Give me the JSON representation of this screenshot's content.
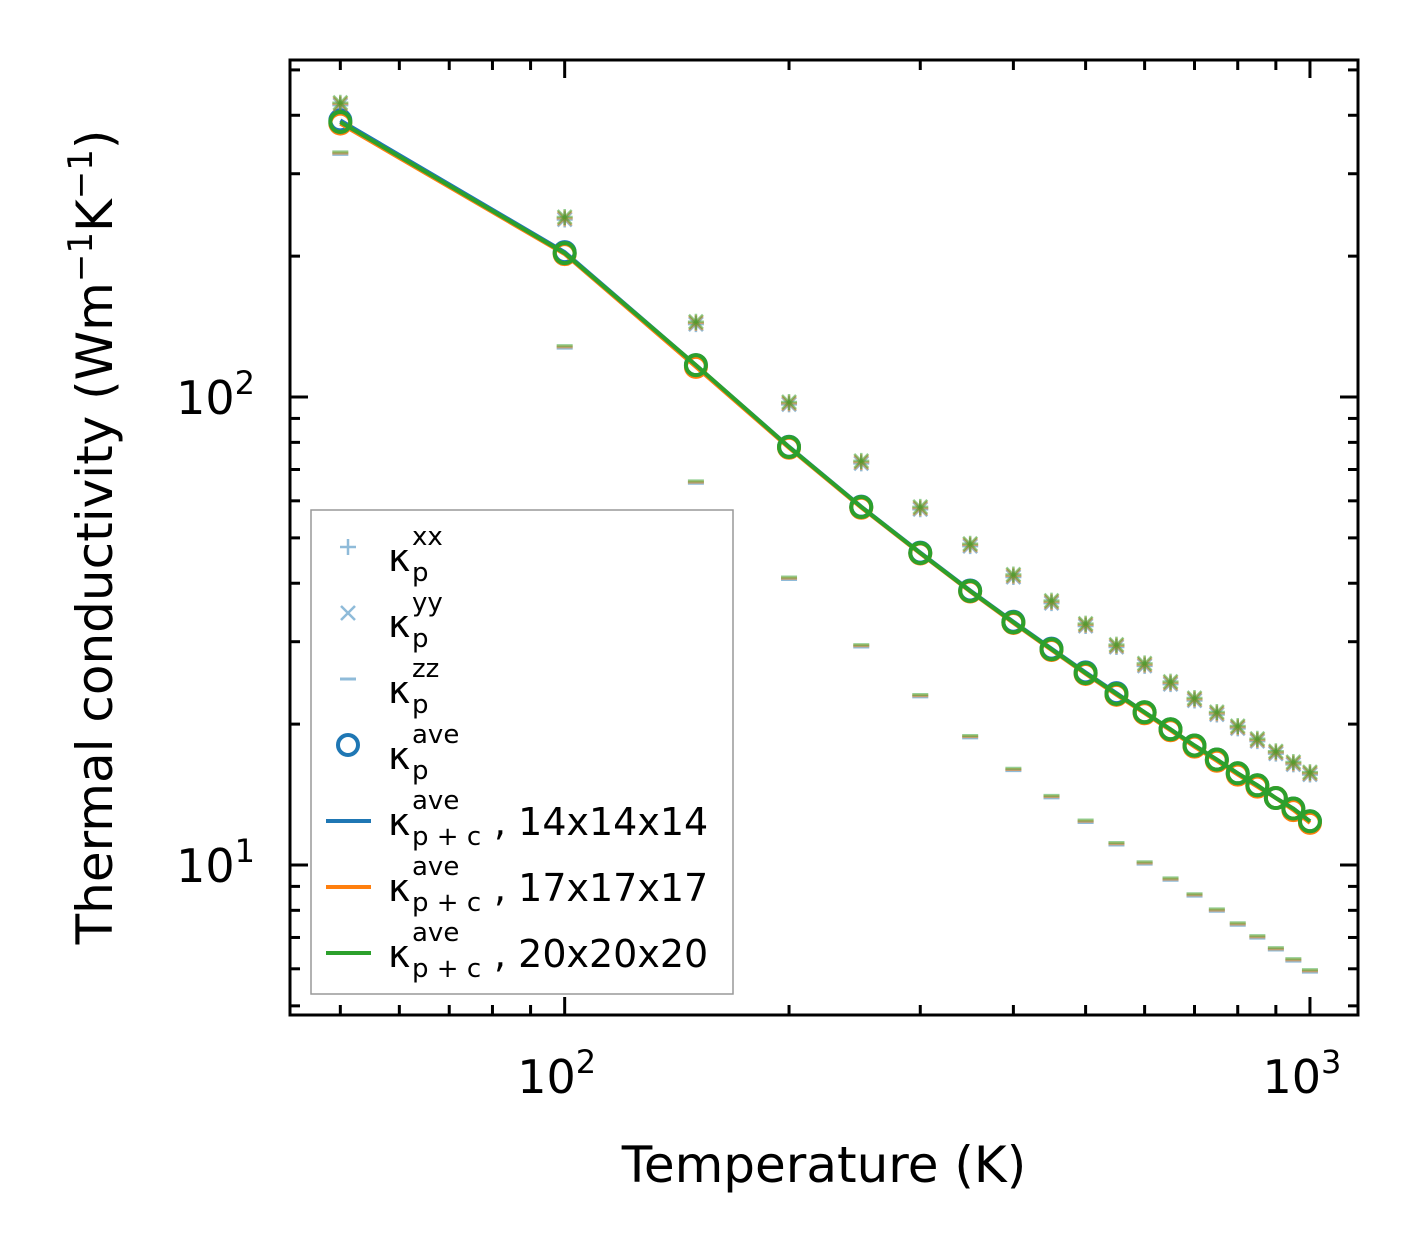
{
  "chart_data": {
    "type": "scatter",
    "scale": "log-log",
    "xlabel": "Temperature (K)",
    "ylabel": "Thermal conductivity (Wm⁻¹K⁻¹)",
    "xlim": [
      42.8,
      1160
    ],
    "ylim": [
      4.78,
      525
    ],
    "x_ticks": [
      {
        "value": 100,
        "label": "10",
        "exp": "2"
      },
      {
        "value": 1000,
        "label": "10",
        "exp": "3"
      }
    ],
    "y_ticks": [
      {
        "value": 10,
        "label": "10",
        "exp": "1"
      },
      {
        "value": 100,
        "label": "10",
        "exp": "2"
      }
    ],
    "legend_position": "lower-left",
    "x": [
      50,
      100,
      150,
      200,
      250,
      300,
      350,
      400,
      450,
      500,
      550,
      600,
      650,
      700,
      750,
      800,
      850,
      900,
      950,
      1000
    ],
    "marker_series": [
      {
        "name": "xx",
        "label_base": "κ",
        "sub": "p",
        "sup": "xx",
        "marker": "plus",
        "values": [
          423,
          241,
          144,
          97,
          72.6,
          57.9,
          48.3,
          41.5,
          36.5,
          32.6,
          29.4,
          26.8,
          24.5,
          22.6,
          21.1,
          19.7,
          18.5,
          17.4,
          16.5,
          15.7
        ]
      },
      {
        "name": "yy",
        "label_base": "κ",
        "sub": "p",
        "sup": "yy",
        "marker": "x",
        "values": [
          423,
          241,
          144,
          97,
          72.6,
          57.9,
          48.3,
          41.5,
          36.5,
          32.6,
          29.4,
          26.8,
          24.5,
          22.6,
          21.1,
          19.7,
          18.5,
          17.4,
          16.5,
          15.7
        ]
      },
      {
        "name": "zz",
        "label_base": "κ",
        "sub": "p",
        "sup": "zz",
        "marker": "hline",
        "values": [
          332,
          128,
          65.8,
          41.0,
          29.4,
          23.0,
          18.8,
          16.0,
          14.0,
          12.4,
          11.1,
          10.1,
          9.33,
          8.63,
          8.01,
          7.48,
          7.02,
          6.62,
          6.27,
          5.94
        ]
      },
      {
        "name": "ave",
        "label_base": "κ",
        "sub": "p",
        "sup": "ave",
        "marker": "circle",
        "values": [
          387,
          203,
          117,
          78.2,
          58.2,
          46.4,
          38.5,
          33.0,
          28.9,
          25.7,
          23.2,
          21.2,
          19.5,
          18.0,
          16.8,
          15.7,
          14.8,
          13.9,
          13.2,
          12.4
        ]
      }
    ],
    "line_series": [
      {
        "name": "14x14x14",
        "label_base": "κ",
        "sub": "p + c",
        "sup": "ave",
        "suffix": ", 14x14x14",
        "color": "#1f77b4",
        "values": [
          390,
          204,
          117,
          78.3,
          58.3,
          46.5,
          38.6,
          33.1,
          29.0,
          25.8,
          23.3,
          21.2,
          19.5,
          18.0,
          16.8,
          15.7,
          14.8,
          13.9,
          13.2,
          12.4
        ]
      },
      {
        "name": "17x17x17",
        "label_base": "κ",
        "sub": "p + c",
        "sup": "ave",
        "suffix": ", 17x17x17",
        "color": "#ff7f0e",
        "values": [
          384,
          202,
          116,
          77.9,
          58.0,
          46.3,
          38.4,
          32.9,
          28.8,
          25.6,
          23.1,
          21.1,
          19.4,
          17.9,
          16.7,
          15.6,
          14.7,
          13.9,
          13.1,
          12.3
        ]
      },
      {
        "name": "20x20x20",
        "label_base": "κ",
        "sub": "p + c",
        "sup": "ave",
        "suffix": ", 20x20x20",
        "color": "#2ca02c",
        "values": [
          387,
          203,
          117,
          78.2,
          58.2,
          46.4,
          38.5,
          33.0,
          28.9,
          25.7,
          23.2,
          21.2,
          19.5,
          18.0,
          16.8,
          15.7,
          14.8,
          13.9,
          13.2,
          12.4
        ]
      }
    ]
  }
}
